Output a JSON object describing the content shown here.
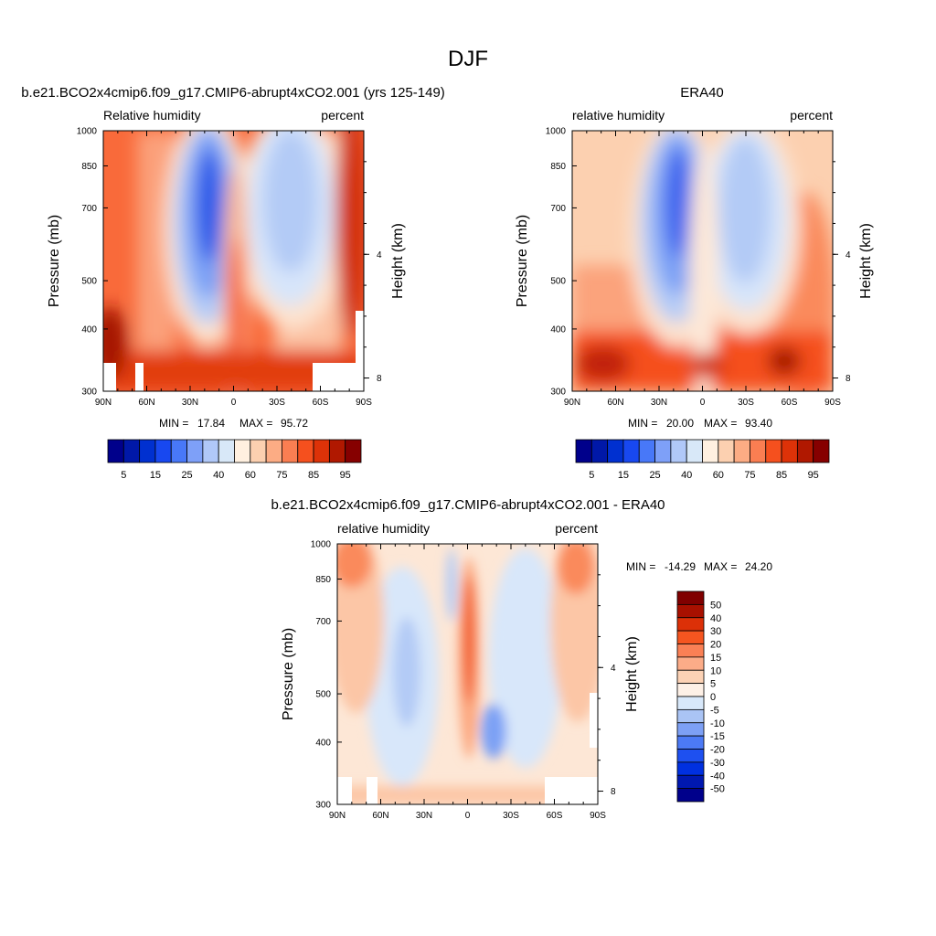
{
  "figure": {
    "season_title": "DJF"
  },
  "chart_data": [
    {
      "type": "heatmap",
      "title": "b.e21.BCO2x4cmip6.f09_g17.CMIP6-abrupt4xCO2.001 (yrs 125-149)",
      "left_label": "Relative humidity",
      "right_label": "percent",
      "ylabel": "Pressure (mb)",
      "ylabel_right": "Height (km)",
      "x_ticks": [
        "90N",
        "60N",
        "30N",
        "0",
        "30S",
        "60S",
        "90S"
      ],
      "x_values": [
        90,
        60,
        30,
        0,
        -30,
        -60,
        -90
      ],
      "xlim": [
        90,
        -90
      ],
      "y_ticks": [
        "300",
        "400",
        "500",
        "700",
        "850",
        "1000"
      ],
      "y_values": [
        300,
        400,
        500,
        700,
        850,
        1000
      ],
      "ylim": [
        1000,
        300
      ],
      "y_scale": "log",
      "y_right_ticks": [
        "8",
        "4"
      ],
      "stats": {
        "min_label": "MIN =",
        "min": "17.84",
        "max_label": "MAX =",
        "max": "95.72"
      },
      "colorbar": {
        "orientation": "horizontal",
        "colors": [
          "#00008b",
          "#0018a8",
          "#0030d0",
          "#1848f0",
          "#4878f8",
          "#7ea0f8",
          "#b0c8f8",
          "#d8e8f8",
          "#fff0e0",
          "#fcd0b0",
          "#fcac84",
          "#fa7e52",
          "#f5501e",
          "#dd3208",
          "#b01800",
          "#860000"
        ],
        "tick_labels": [
          "5",
          "15",
          "25",
          "40",
          "60",
          "75",
          "85",
          "95"
        ]
      },
      "features": [
        {
          "name": "high-rh-north",
          "lat": 85,
          "p": 880,
          "value": 95
        },
        {
          "name": "dry-northern-subtropics",
          "lat": 18,
          "p": 450,
          "value": 20
        },
        {
          "name": "itcz-moist-tower",
          "lat": 0,
          "p": 700,
          "value": 80
        },
        {
          "name": "dry-southern-subtropics",
          "lat": -22,
          "p": 480,
          "value": 38
        },
        {
          "name": "high-rh-south",
          "lat": -80,
          "p": 600,
          "value": 85
        }
      ]
    },
    {
      "type": "heatmap",
      "title": "ERA40",
      "left_label": "relative humidity",
      "right_label": "percent",
      "ylabel": "Pressure (mb)",
      "ylabel_right": "Height (km)",
      "x_ticks": [
        "90N",
        "60N",
        "30N",
        "0",
        "30S",
        "60S",
        "90S"
      ],
      "x_values": [
        90,
        60,
        30,
        0,
        -30,
        -60,
        -90
      ],
      "xlim": [
        90,
        -90
      ],
      "y_ticks": [
        "300",
        "400",
        "500",
        "700",
        "850",
        "1000"
      ],
      "y_values": [
        300,
        400,
        500,
        700,
        850,
        1000
      ],
      "ylim": [
        1000,
        300
      ],
      "y_scale": "log",
      "y_right_ticks": [
        "8",
        "4"
      ],
      "stats": {
        "min_label": "MIN =",
        "min": "20.00",
        "max_label": "MAX =",
        "max": "93.40"
      },
      "colorbar": {
        "orientation": "horizontal",
        "colors": [
          "#00008b",
          "#0018a8",
          "#0030d0",
          "#1848f0",
          "#4878f8",
          "#7ea0f8",
          "#b0c8f8",
          "#d8e8f8",
          "#fff0e0",
          "#fcd0b0",
          "#fcac84",
          "#fa7e52",
          "#f5501e",
          "#dd3208",
          "#b01800",
          "#860000"
        ],
        "tick_labels": [
          "5",
          "15",
          "25",
          "40",
          "60",
          "75",
          "85",
          "95"
        ]
      },
      "features": [
        {
          "name": "low-level-moist-north",
          "lat": 70,
          "p": 900,
          "value": 90
        },
        {
          "name": "dry-northern-subtropics",
          "lat": 20,
          "p": 450,
          "value": 25
        },
        {
          "name": "dry-southern-subtropics",
          "lat": -22,
          "p": 480,
          "value": 38
        },
        {
          "name": "low-level-moist-south",
          "lat": -65,
          "p": 880,
          "value": 93
        }
      ]
    },
    {
      "type": "heatmap",
      "title": "b.e21.BCO2x4cmip6.f09_g17.CMIP6-abrupt4xCO2.001 - ERA40",
      "left_label": "relative humidity",
      "right_label": "percent",
      "ylabel": "Pressure (mb)",
      "ylabel_right": "Height (km)",
      "x_ticks": [
        "90N",
        "60N",
        "30N",
        "0",
        "30S",
        "60S",
        "90S"
      ],
      "x_values": [
        90,
        60,
        30,
        0,
        -30,
        -60,
        -90
      ],
      "xlim": [
        90,
        -90
      ],
      "y_ticks": [
        "300",
        "400",
        "500",
        "700",
        "850",
        "1000"
      ],
      "y_values": [
        300,
        400,
        500,
        700,
        850,
        1000
      ],
      "ylim": [
        1000,
        300
      ],
      "y_scale": "log",
      "y_right_ticks": [
        "8",
        "4"
      ],
      "stats": {
        "min_label": "MIN =",
        "min": "-14.29",
        "max_label": "MAX =",
        "max": "24.20"
      },
      "colorbar": {
        "orientation": "vertical",
        "colors": [
          "#00008b",
          "#0018b0",
          "#0030e0",
          "#1e50f0",
          "#4c7af5",
          "#7da0f5",
          "#aac4f5",
          "#d8e8fa",
          "#fdf0e6",
          "#fcd2b5",
          "#fcac88",
          "#fa8055",
          "#f55520",
          "#dc3008",
          "#a81000",
          "#800000"
        ],
        "tick_labels": [
          "50",
          "40",
          "30",
          "20",
          "15",
          "10",
          "5",
          "0",
          "-5",
          "-10",
          "-15",
          "-20",
          "-30",
          "-40",
          "-50"
        ]
      },
      "features": [
        {
          "name": "moistening-equator",
          "lat": 0,
          "p": 600,
          "value": 20
        },
        {
          "name": "moistening-north-high",
          "lat": 80,
          "p": 360,
          "value": 15
        },
        {
          "name": "moistening-south-high",
          "lat": -78,
          "p": 380,
          "value": 20
        },
        {
          "name": "drying-southern-subtropics",
          "lat": -22,
          "p": 800,
          "value": -12
        }
      ]
    }
  ]
}
